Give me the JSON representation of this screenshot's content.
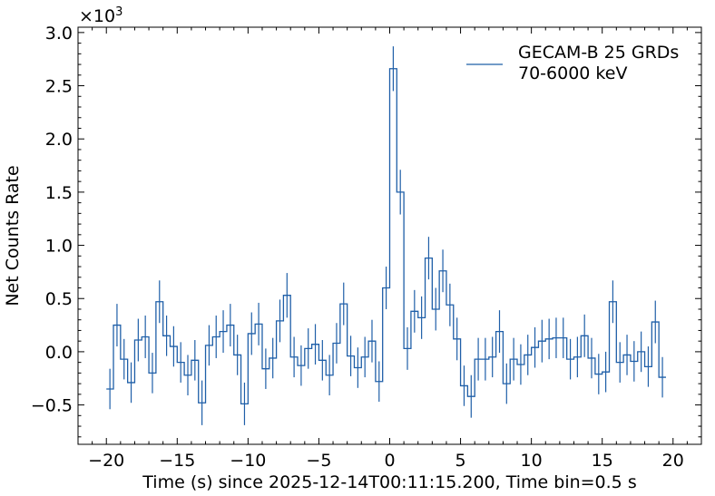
{
  "chart_data": {
    "type": "line",
    "style": "histogram-step-with-errorbars",
    "xlabel": "Time (s) since 2025-12-14T00:11:15.200, Time bin=0.5 s",
    "ylabel": "Net Counts Rate",
    "y_scale_text": "×10",
    "y_scale_exp": "3",
    "xlim": [
      -22,
      22
    ],
    "ylim": [
      -0.87,
      3.05
    ],
    "x_ticks": [
      -20,
      -15,
      -10,
      -5,
      0,
      5,
      10,
      15,
      20
    ],
    "x_tick_labels": [
      "−20",
      "−15",
      "−10",
      "−5",
      "0",
      "5",
      "10",
      "15",
      "20"
    ],
    "y_ticks": [
      -0.5,
      0.0,
      0.5,
      1.0,
      1.5,
      2.0,
      2.5,
      3.0
    ],
    "y_tick_labels": [
      "−0.5",
      "0.0",
      "0.5",
      "1.0",
      "1.5",
      "2.0",
      "2.5",
      "3.0"
    ],
    "bin_width": 0.5,
    "legend_position": "top-right",
    "series": [
      {
        "name": "GECAM-B 25 GRDs",
        "name_line2": "70-6000 keV",
        "color": "#1f5fa8",
        "bin_start": -20.0,
        "values": [
          -0.35,
          0.25,
          -0.07,
          -0.29,
          0.11,
          0.14,
          -0.2,
          0.47,
          0.15,
          0.05,
          -0.1,
          -0.22,
          -0.08,
          -0.48,
          0.06,
          0.14,
          0.19,
          0.25,
          -0.03,
          -0.49,
          0.17,
          0.26,
          -0.16,
          -0.06,
          0.29,
          0.53,
          -0.05,
          -0.13,
          0.03,
          0.07,
          -0.08,
          -0.22,
          0.08,
          0.45,
          -0.04,
          -0.15,
          -0.05,
          0.1,
          -0.28,
          0.6,
          2.66,
          1.5,
          0.03,
          0.38,
          0.32,
          0.88,
          0.4,
          0.76,
          0.44,
          0.12,
          -0.32,
          -0.42,
          -0.07,
          -0.07,
          -0.05,
          0.19,
          -0.3,
          -0.07,
          -0.12,
          -0.03,
          0.04,
          0.1,
          0.12,
          0.13,
          0.13,
          -0.07,
          -0.05,
          0.15,
          -0.06,
          -0.21,
          -0.19,
          0.47,
          -0.1,
          -0.03,
          -0.09,
          0.0,
          -0.14,
          0.28,
          -0.24
        ],
        "errors": [
          0.19,
          0.2,
          0.19,
          0.19,
          0.2,
          0.2,
          0.19,
          0.2,
          0.19,
          0.19,
          0.19,
          0.19,
          0.19,
          0.21,
          0.19,
          0.2,
          0.2,
          0.2,
          0.19,
          0.2,
          0.2,
          0.2,
          0.19,
          0.19,
          0.2,
          0.21,
          0.19,
          0.19,
          0.19,
          0.19,
          0.19,
          0.19,
          0.19,
          0.2,
          0.19,
          0.19,
          0.19,
          0.2,
          0.19,
          0.2,
          0.21,
          0.21,
          0.2,
          0.2,
          0.2,
          0.2,
          0.2,
          0.2,
          0.2,
          0.2,
          0.19,
          0.2,
          0.2,
          0.2,
          0.19,
          0.2,
          0.19,
          0.2,
          0.19,
          0.19,
          0.19,
          0.2,
          0.19,
          0.19,
          0.19,
          0.19,
          0.19,
          0.2,
          0.19,
          0.19,
          0.19,
          0.2,
          0.19,
          0.19,
          0.19,
          0.19,
          0.19,
          0.2,
          0.19
        ]
      }
    ]
  }
}
